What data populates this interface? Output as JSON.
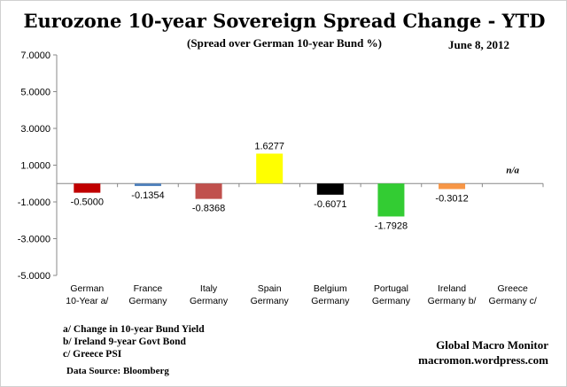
{
  "title": "Eurozone 10-year Sovereign Spread Change - YTD",
  "subtitle": "(Spread over German 10-year Bund %)",
  "date": "June 8,  2012",
  "chart_data": {
    "type": "bar",
    "ylim": [
      -5,
      7
    ],
    "yticks": [
      "7.0000",
      "5.0000",
      "3.0000",
      "1.0000",
      "-1.0000",
      "-3.0000",
      "-5.0000"
    ],
    "grid": false,
    "legend": "none",
    "categories": [
      [
        "German",
        "10-Year a/"
      ],
      [
        "France",
        "Germany"
      ],
      [
        "Italy",
        "Germany"
      ],
      [
        "Spain",
        "Germany"
      ],
      [
        "Belgium",
        "Germany"
      ],
      [
        "Portugal",
        "Germany"
      ],
      [
        "Ireland",
        "Germany b/"
      ],
      [
        "Greece",
        "Germany c/"
      ]
    ],
    "values": [
      -0.5,
      -0.1354,
      -0.8368,
      1.6277,
      -0.6071,
      -1.7928,
      -0.3012,
      null
    ],
    "value_labels": [
      "-0.5000",
      "-0.1354",
      "-0.8368",
      "1.6277",
      "-0.6071",
      "-1.7928",
      "-0.3012",
      "n/a"
    ],
    "colors": [
      "#c00000",
      "#4f81bd",
      "#c0504d",
      "#ffff00",
      "#000000",
      "#33cc33",
      "#f79646",
      "#ffffff"
    ]
  },
  "footnotes": [
    "a/  Change in 10-year Bund Yield",
    "b/  Ireland 9-year Govt Bond",
    "c/  Greece PSI"
  ],
  "source": "Data Source:  Bloomberg",
  "credit": {
    "line1": "Global Macro Monitor",
    "line2": "macromon.wordpress.com"
  }
}
